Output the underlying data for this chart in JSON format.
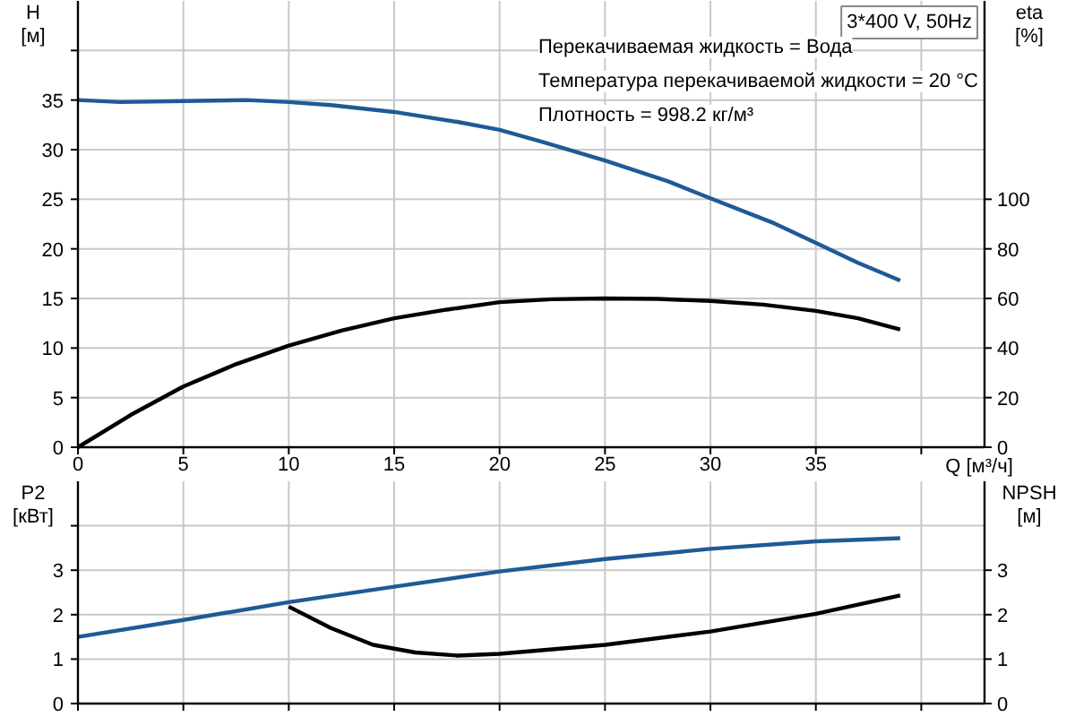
{
  "chart_data": [
    {
      "type": "line",
      "title": "3*400 V, 50Hz",
      "xlabel": "Q [м³/ч]",
      "ylabel": "H [м]",
      "y2label": "eta [%]",
      "annotations": [
        "Перекачиваемая жидкость = Вода",
        "Температура перекачиваемой жидкости = 20 °C",
        "Плотность = 998.2 кг/м³"
      ],
      "xlim": [
        0,
        43
      ],
      "xticks": [
        0,
        5,
        10,
        15,
        20,
        25,
        30,
        35,
        {
          "value": 40,
          "label": null
        }
      ],
      "ylim": [
        0,
        45
      ],
      "yticks": [
        0,
        5,
        10,
        15,
        20,
        25,
        30,
        35,
        {
          "value": 40,
          "label": null
        }
      ],
      "y2lim": [
        0,
        180
      ],
      "y2ticks": [
        0,
        20,
        40,
        60,
        80,
        100
      ],
      "grid": true,
      "series": [
        {
          "color": "#1f5a96",
          "x": [
            0,
            2,
            5,
            8,
            10,
            12,
            15,
            18,
            20,
            22,
            25,
            28,
            30,
            33,
            35,
            37,
            39
          ],
          "values": [
            35,
            34.8,
            34.9,
            35,
            34.8,
            34.5,
            33.8,
            32.8,
            32,
            30.8,
            28.9,
            26.8,
            25.1,
            22.6,
            20.6,
            18.6,
            16.8
          ]
        },
        {
          "color": "#000000",
          "axis": "y2",
          "x": [
            0,
            2.5,
            5,
            7.5,
            10,
            12.5,
            15,
            17.5,
            20,
            22.5,
            25,
            27.5,
            30,
            32.5,
            35,
            37,
            39
          ],
          "values": [
            0,
            13,
            24.5,
            33.5,
            41,
            47,
            52,
            55.5,
            58.5,
            59.7,
            60,
            59.8,
            59,
            57.5,
            55,
            52,
            47.5
          ]
        }
      ]
    },
    {
      "type": "line",
      "ylabel": "P2 [кВт]",
      "y2label": "NPSH [м]",
      "tick_labels": "y",
      "xlim": [
        0,
        43
      ],
      "xticks": [
        0,
        5,
        10,
        15,
        20,
        25,
        30,
        35,
        40
      ],
      "ylim": [
        0,
        5
      ],
      "yticks": [
        0,
        1,
        2,
        3,
        {
          "value": 4,
          "label": null
        }
      ],
      "y2lim": [
        0,
        5
      ],
      "y2ticks": [
        0,
        1,
        2,
        3
      ],
      "grid": true,
      "series": [
        {
          "color": "#1f5a96",
          "x": [
            0,
            5,
            10,
            15,
            20,
            25,
            30,
            35,
            39
          ],
          "values": [
            1.5,
            1.88,
            2.28,
            2.63,
            2.97,
            3.25,
            3.48,
            3.65,
            3.72
          ]
        },
        {
          "color": "#000000",
          "axis": "y2",
          "x": [
            10,
            12,
            14,
            16,
            18,
            20,
            25,
            30,
            35,
            39
          ],
          "values": [
            2.18,
            1.7,
            1.32,
            1.15,
            1.08,
            1.12,
            1.32,
            1.62,
            2.02,
            2.43
          ]
        }
      ]
    }
  ]
}
